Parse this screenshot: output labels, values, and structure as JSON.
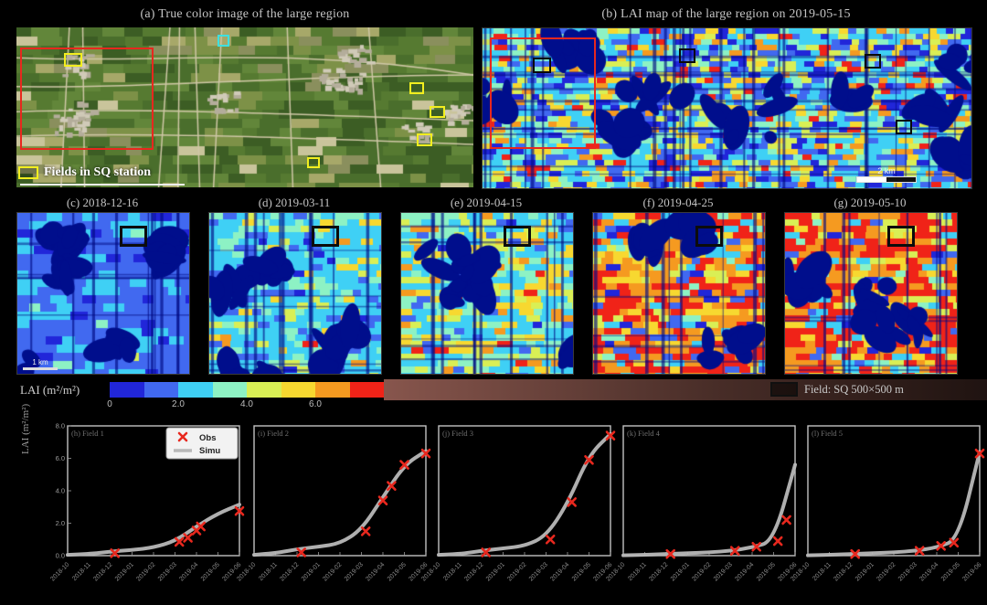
{
  "header": {
    "panel_a_title": "(a) True color image of the large region",
    "panel_b_title": "(b) LAI map of the large region on 2019-05-15"
  },
  "panel_a": {
    "legend_label": "Fields in SQ station"
  },
  "panel_b": {
    "scalebar_label": "2 km"
  },
  "map_row": {
    "scalebar_label": "1 km",
    "panels": [
      {
        "label": "(c) 2018-12-16"
      },
      {
        "label": "(d) 2019-03-11"
      },
      {
        "label": "(e) 2019-04-15"
      },
      {
        "label": "(f) 2019-04-25"
      },
      {
        "label": "(g) 2019-05-10"
      }
    ]
  },
  "colorbar": {
    "label": "LAI (m²/m²)",
    "range": [
      0,
      8
    ],
    "tick_labels": [
      "0",
      "2.0",
      "4.0",
      "6.0"
    ],
    "segment_colors": [
      "#2126d9",
      "#4169f0",
      "#3fd0f5",
      "#8df2c4",
      "#d9ef55",
      "#f7d830",
      "#f59a20",
      "#f02318"
    ]
  },
  "field_legend": {
    "label": "Field: SQ 500×500 m"
  },
  "accent_colors": {
    "obs": "#e8281e",
    "simu": "#b8b8b8",
    "aoi_red": "#e8281e",
    "field_yellow": "#f2ee1f",
    "water_navy": "#000e8c"
  },
  "chart_data": [
    {
      "type": "line",
      "id": "h",
      "title": "(h) Field 1",
      "x": [
        "2018-10",
        "2018-11",
        "2018-12",
        "2019-01",
        "2019-02",
        "2019-03",
        "2019-04",
        "2019-05",
        "2019-06"
      ],
      "xlabel": "",
      "ylabel": "LAI (m²/m²)",
      "ylim": [
        0,
        8
      ],
      "yticks": [
        0,
        2,
        4,
        6,
        8
      ],
      "legend": [
        "Obs",
        "Simu"
      ],
      "simu": [
        0.05,
        0.1,
        0.25,
        0.35,
        0.5,
        0.9,
        1.8,
        2.6,
        3.15
      ],
      "obs": [
        [
          2.2,
          0.15
        ],
        [
          5.2,
          0.85
        ],
        [
          5.6,
          1.1
        ],
        [
          6.0,
          1.55
        ],
        [
          6.2,
          1.8
        ],
        [
          8.0,
          2.75
        ]
      ]
    },
    {
      "type": "line",
      "id": "i",
      "title": "(i) Field 2",
      "x": [
        "2018-10",
        "2018-11",
        "2018-12",
        "2019-01",
        "2019-02",
        "2019-03",
        "2019-04",
        "2019-05",
        "2019-06"
      ],
      "xlabel": "",
      "ylabel": "LAI (m²/m²)",
      "ylim": [
        0,
        8
      ],
      "yticks": [
        0,
        2,
        4,
        6,
        8
      ],
      "simu": [
        0.05,
        0.15,
        0.4,
        0.55,
        0.75,
        1.6,
        3.6,
        5.6,
        6.45
      ],
      "obs": [
        [
          2.2,
          0.2
        ],
        [
          5.2,
          1.5
        ],
        [
          6.0,
          3.4
        ],
        [
          6.4,
          4.3
        ],
        [
          7.0,
          5.6
        ],
        [
          8.0,
          6.3
        ]
      ]
    },
    {
      "type": "line",
      "id": "j",
      "title": "(j) Field 3",
      "x": [
        "2018-10",
        "2018-11",
        "2018-12",
        "2019-01",
        "2019-02",
        "2019-03",
        "2019-04",
        "2019-05",
        "2019-06"
      ],
      "xlabel": "",
      "ylabel": "LAI (m²/m²)",
      "ylim": [
        0,
        8
      ],
      "yticks": [
        0,
        2,
        4,
        6,
        8
      ],
      "simu": [
        0.05,
        0.1,
        0.3,
        0.45,
        0.6,
        1.2,
        3.2,
        6.2,
        7.5
      ],
      "obs": [
        [
          2.2,
          0.2
        ],
        [
          5.2,
          1.0
        ],
        [
          6.2,
          3.3
        ],
        [
          7.0,
          5.9
        ],
        [
          8.0,
          7.4
        ]
      ]
    },
    {
      "type": "line",
      "id": "k",
      "title": "(k) Field 4",
      "x": [
        "2018-10",
        "2018-11",
        "2018-12",
        "2019-01",
        "2019-02",
        "2019-03",
        "2019-04",
        "2019-05",
        "2019-06"
      ],
      "xlabel": "",
      "ylabel": "LAI (m²/m²)",
      "ylim": [
        0,
        8
      ],
      "yticks": [
        0,
        2,
        4,
        6,
        8
      ],
      "simu": [
        0.02,
        0.05,
        0.1,
        0.15,
        0.2,
        0.3,
        0.5,
        0.9,
        5.6
      ],
      "obs": [
        [
          2.2,
          0.1
        ],
        [
          5.2,
          0.3
        ],
        [
          6.2,
          0.55
        ],
        [
          7.2,
          0.9
        ],
        [
          7.6,
          2.2
        ]
      ]
    },
    {
      "type": "line",
      "id": "l",
      "title": "(l) Field 5",
      "x": [
        "2018-10",
        "2018-11",
        "2018-12",
        "2019-01",
        "2019-02",
        "2019-03",
        "2019-04",
        "2019-05",
        "2019-06"
      ],
      "xlabel": "",
      "ylabel": "LAI (m²/m²)",
      "ylim": [
        0,
        8
      ],
      "yticks": [
        0,
        2,
        4,
        6,
        8
      ],
      "simu": [
        0.02,
        0.05,
        0.1,
        0.15,
        0.2,
        0.3,
        0.5,
        1.0,
        6.4
      ],
      "obs": [
        [
          2.2,
          0.1
        ],
        [
          5.2,
          0.3
        ],
        [
          6.2,
          0.6
        ],
        [
          6.8,
          0.8
        ],
        [
          8.0,
          6.3
        ]
      ]
    }
  ]
}
